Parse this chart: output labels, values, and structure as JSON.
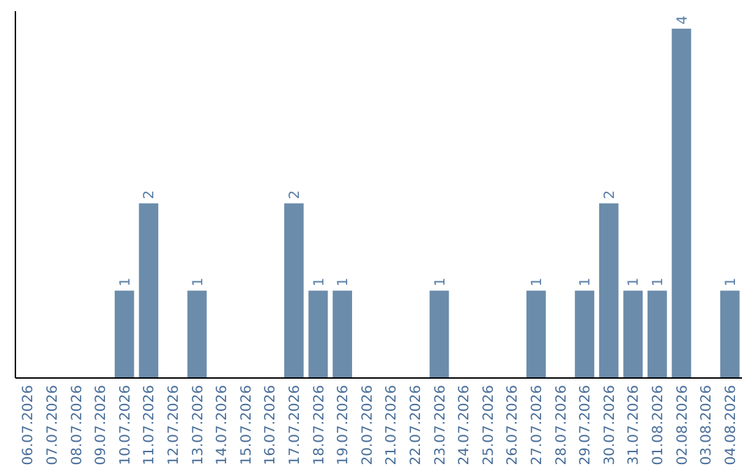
{
  "chart_data": {
    "type": "bar",
    "categories": [
      "06.07.2026",
      "07.07.2026",
      "08.07.2026",
      "09.07.2026",
      "10.07.2026",
      "11.07.2026",
      "12.07.2026",
      "13.07.2026",
      "14.07.2026",
      "15.07.2026",
      "16.07.2026",
      "17.07.2026",
      "18.07.2026",
      "19.07.2026",
      "20.07.2026",
      "21.07.2026",
      "22.07.2026",
      "23.07.2026",
      "24.07.2026",
      "25.07.2026",
      "26.07.2026",
      "27.07.2026",
      "28.07.2026",
      "29.07.2026",
      "30.07.2026",
      "31.07.2026",
      "01.08.2026",
      "02.08.2026",
      "03.08.2026",
      "04.08.2026"
    ],
    "values": [
      0,
      0,
      0,
      0,
      1,
      2,
      0,
      1,
      0,
      0,
      0,
      2,
      1,
      1,
      0,
      0,
      0,
      1,
      0,
      0,
      0,
      1,
      0,
      1,
      2,
      1,
      1,
      4,
      0,
      1
    ],
    "value_labels": [
      null,
      null,
      null,
      null,
      "1",
      "2",
      null,
      "1",
      null,
      null,
      null,
      "2",
      "1",
      "1",
      null,
      null,
      null,
      "1",
      null,
      null,
      null,
      "1",
      null,
      "1",
      "2",
      "1",
      "1",
      "4",
      null,
      "1"
    ],
    "color": "#6b8cab",
    "ylim": [
      0,
      4.2
    ],
    "tick_labels": "x"
  }
}
